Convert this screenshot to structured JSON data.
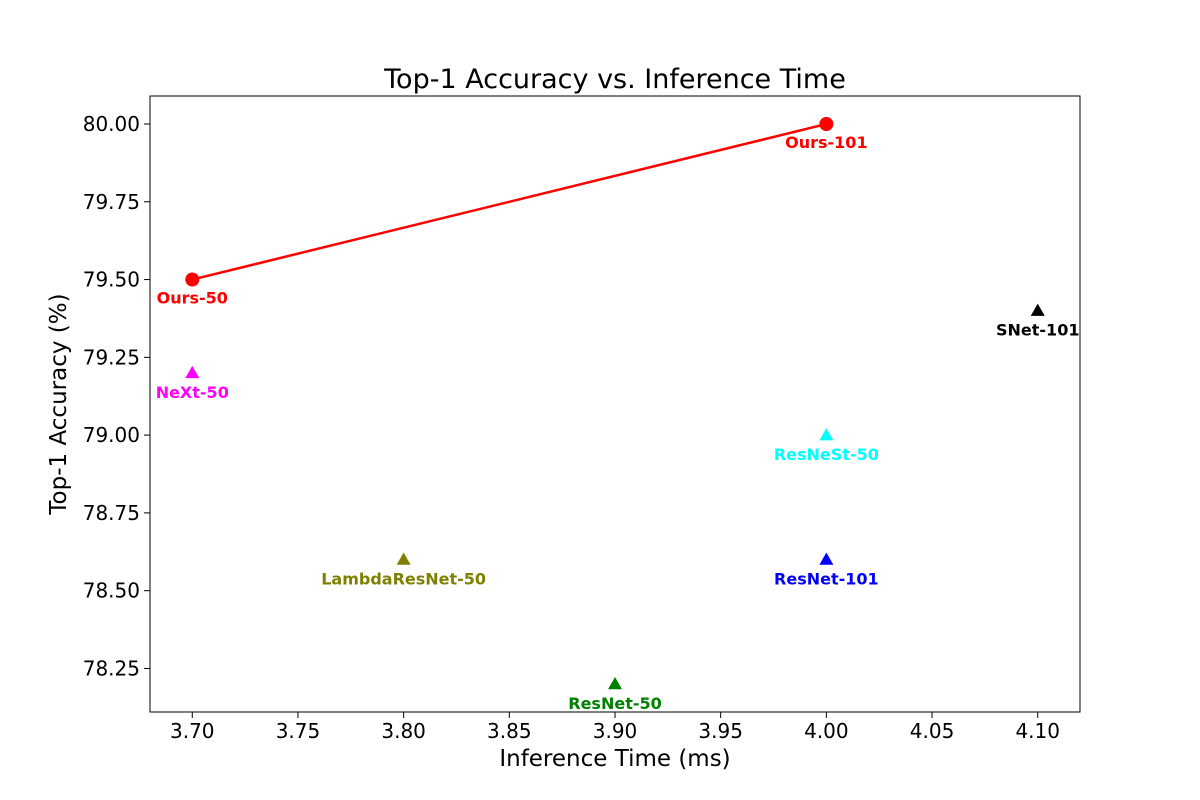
{
  "chart_data": {
    "type": "scatter",
    "title": "Top-1 Accuracy vs. Inference Time",
    "xlabel": "Inference Time (ms)",
    "ylabel": "Top-1 Accuracy (%)",
    "xlim": [
      3.68,
      4.12
    ],
    "ylim": [
      78.11,
      80.09
    ],
    "x_ticks": [
      "3.70",
      "3.75",
      "3.80",
      "3.85",
      "3.90",
      "3.95",
      "4.00",
      "4.05",
      "4.10"
    ],
    "y_ticks": [
      "78.25",
      "78.50",
      "78.75",
      "79.00",
      "79.25",
      "79.50",
      "79.75",
      "80.00"
    ],
    "grid": false,
    "line_series": {
      "color": "#ff0000",
      "points": [
        {
          "x": 3.7,
          "y": 79.5,
          "label": "Ours-50"
        },
        {
          "x": 4.0,
          "y": 80.0,
          "label": "Ours-101"
        }
      ]
    },
    "points": [
      {
        "x": 3.7,
        "y": 79.2,
        "label": "NeXt-50",
        "color": "#ff00ff",
        "marker": "triangle"
      },
      {
        "x": 3.8,
        "y": 78.6,
        "label": "LambdaResNet-50",
        "color": "#808000",
        "marker": "triangle"
      },
      {
        "x": 3.9,
        "y": 78.2,
        "label": "ResNet-50",
        "color": "#008000",
        "marker": "triangle"
      },
      {
        "x": 4.0,
        "y": 79.0,
        "label": "ResNeSt-50",
        "color": "#00ffff",
        "marker": "triangle"
      },
      {
        "x": 4.0,
        "y": 78.6,
        "label": "ResNet-101",
        "color": "#0000ff",
        "marker": "triangle"
      },
      {
        "x": 4.1,
        "y": 79.4,
        "label": "SNet-101",
        "color": "#000000",
        "marker": "triangle"
      }
    ]
  }
}
